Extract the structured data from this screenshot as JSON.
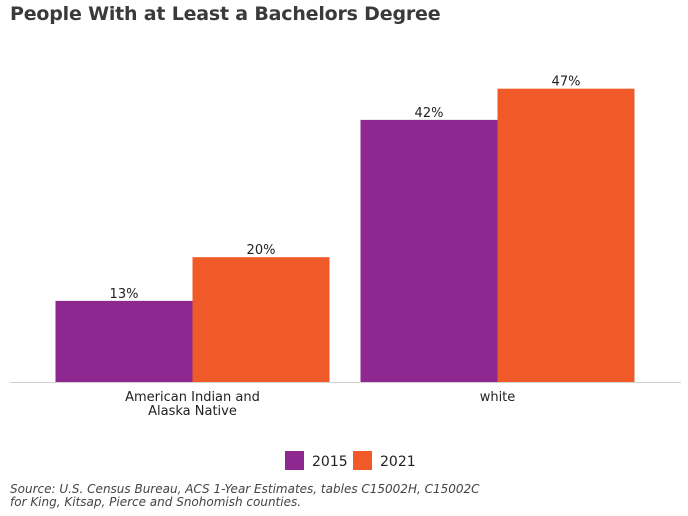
{
  "chart_data": {
    "type": "bar",
    "title": "People With at Least a Bachelors Degree",
    "categories": [
      [
        "American Indian and",
        "Alaska Native"
      ],
      [
        "white"
      ]
    ],
    "series": [
      {
        "name": "2015",
        "values": [
          13,
          42
        ],
        "labels": [
          "13%",
          "42%"
        ]
      },
      {
        "name": "2021",
        "values": [
          20,
          47
        ],
        "labels": [
          "20%",
          "47%"
        ]
      }
    ],
    "ylim": [
      0,
      50
    ],
    "grid": false,
    "legend_position": "bottom",
    "source_lines": [
      "Source: U.S. Census Bureau, ACS 1-Year Estimates, tables C15002H, C15002C",
      "for King, Kitsap, Pierce and Snohomish counties."
    ]
  },
  "colors": {
    "s2015": "#8e278f",
    "s2021": "#f05a28",
    "baseline": "#d0d0d0"
  }
}
